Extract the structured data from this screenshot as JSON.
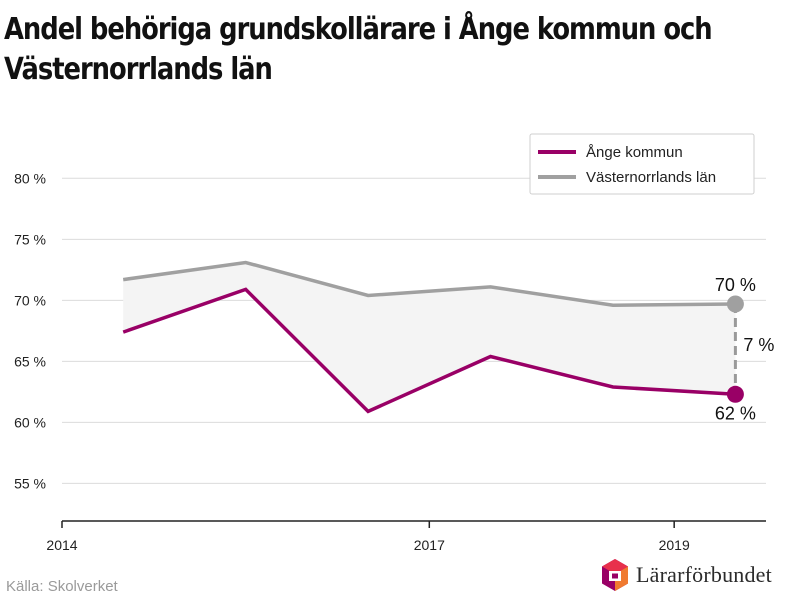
{
  "title_line1": "Andel behöriga grundskollärare i Ånge kommun och",
  "title_line2": "Västernorrlands län",
  "source": "Källa: Skolverket",
  "logo_text": "Lärarförbundet",
  "colors": {
    "ange": "#990066",
    "vasternorrland": "#a0a0a0",
    "band": "#f4f4f4",
    "grid": "#dcdcdc"
  },
  "chart_data": {
    "type": "line",
    "title": "Andel behöriga grundskollärare i Ånge kommun och Västernorrlands län",
    "x_ticks": [
      "2014",
      "2017",
      "2019"
    ],
    "x_tick_values": [
      2014,
      2017,
      2019
    ],
    "xlim": [
      2014,
      2019.75
    ],
    "y_ticks": [
      "55 %",
      "60 %",
      "65 %",
      "70 %",
      "75 %",
      "80 %"
    ],
    "y_tick_values": [
      55,
      60,
      65,
      70,
      75,
      80
    ],
    "ylim": [
      52,
      81.5
    ],
    "grid": true,
    "legend_position": "top-right",
    "x": [
      2014.5,
      2015.5,
      2016.5,
      2017.5,
      2018.5,
      2019.5
    ],
    "series": [
      {
        "name": "Ånge kommun",
        "color": "#990066",
        "values": [
          67.4,
          70.9,
          60.9,
          65.4,
          62.9,
          62.3
        ]
      },
      {
        "name": "Västernorrlands län",
        "color": "#a0a0a0",
        "values": [
          71.7,
          73.1,
          70.4,
          71.1,
          69.6,
          69.7
        ]
      }
    ],
    "annotations": {
      "top_value": "70 %",
      "bottom_value": "62 %",
      "gap": "7 %"
    }
  }
}
